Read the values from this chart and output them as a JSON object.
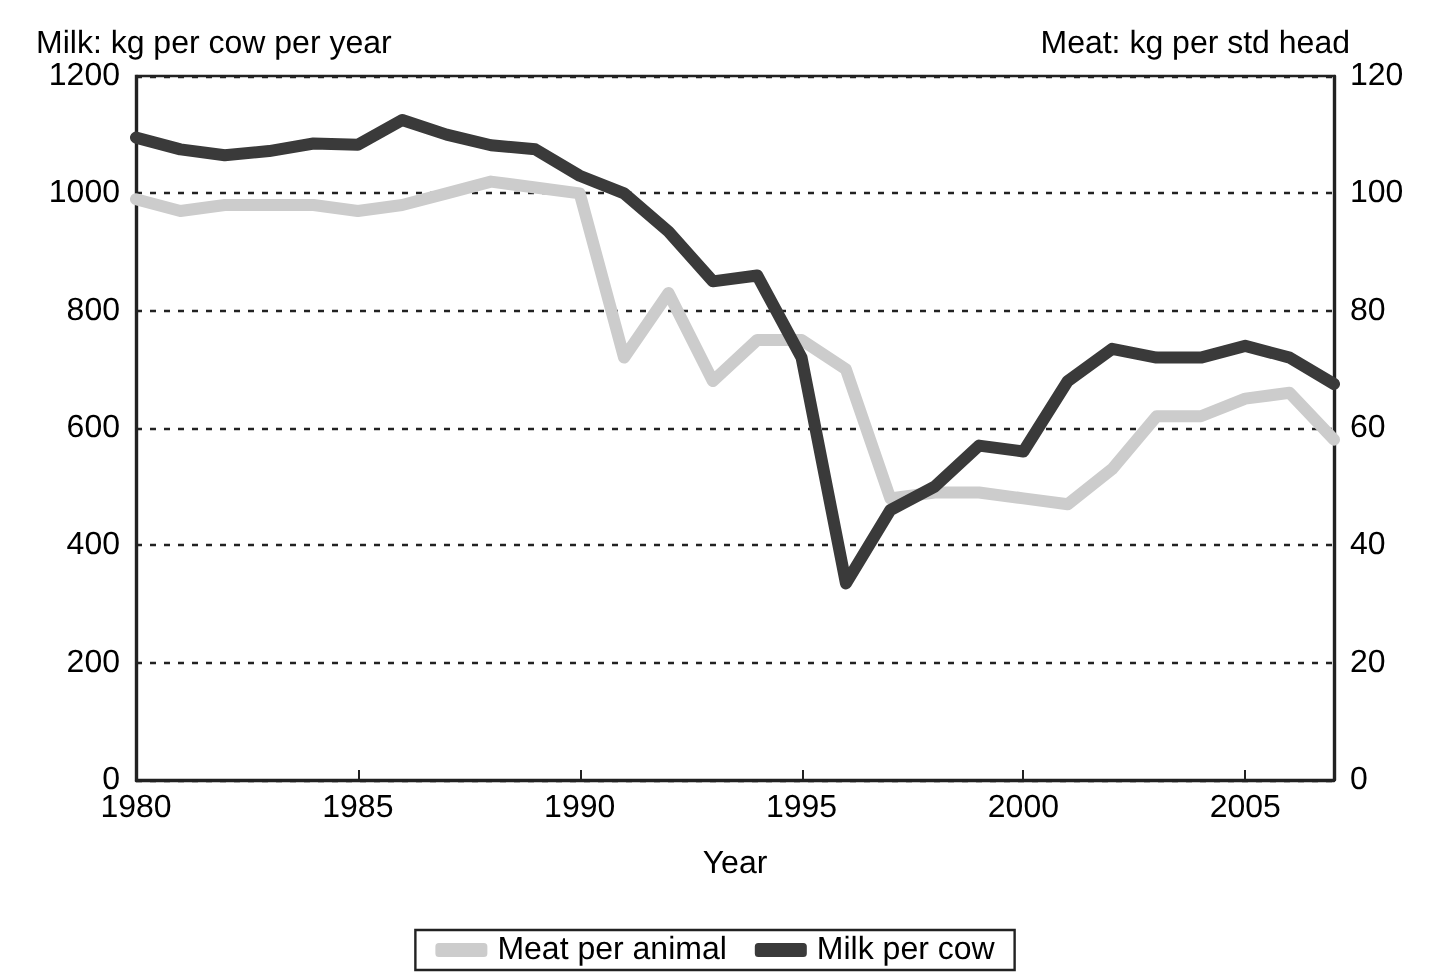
{
  "chart_data": {
    "type": "line",
    "xlabel": "Year",
    "ylabel": "Milk: kg per cow per year",
    "y2label": "Meat: kg per std head",
    "x": [
      1980,
      1981,
      1982,
      1983,
      1984,
      1985,
      1986,
      1987,
      1988,
      1989,
      1990,
      1991,
      1992,
      1993,
      1994,
      1995,
      1996,
      1997,
      1998,
      1999,
      2000,
      2001,
      2002,
      2003,
      2004,
      2005,
      2006,
      2007
    ],
    "series": [
      {
        "name": "Meat per animal",
        "color": "#cccccc",
        "axis": "y2",
        "values": [
          99,
          97,
          98,
          98,
          98,
          97,
          98,
          100,
          102,
          101,
          100,
          72,
          83,
          68,
          75,
          75,
          70,
          48,
          49,
          49,
          48,
          47,
          53,
          62,
          62,
          65,
          66,
          58
        ]
      },
      {
        "name": "Milk per cow",
        "color": "#3a3a3a",
        "values": [
          1095,
          1075,
          1065,
          1072,
          1085,
          1083,
          1125,
          1100,
          1082,
          1075,
          1030,
          1000,
          935,
          850,
          860,
          720,
          335,
          460,
          500,
          570,
          560,
          680,
          735,
          720,
          720,
          740,
          720,
          675
        ]
      }
    ],
    "xlim": [
      1980,
      2007
    ],
    "xticks": [
      1980,
      1985,
      1990,
      1995,
      2000,
      2005
    ],
    "ylim": [
      0,
      1200
    ],
    "yticks": [
      0,
      200,
      400,
      600,
      800,
      1000,
      1200
    ],
    "y2lim": [
      0,
      120
    ],
    "y2ticks": [
      0,
      20,
      40,
      60,
      80,
      100,
      120
    ],
    "grid": "y",
    "legend": "bottom",
    "marker": "none",
    "line_style": "solid"
  }
}
